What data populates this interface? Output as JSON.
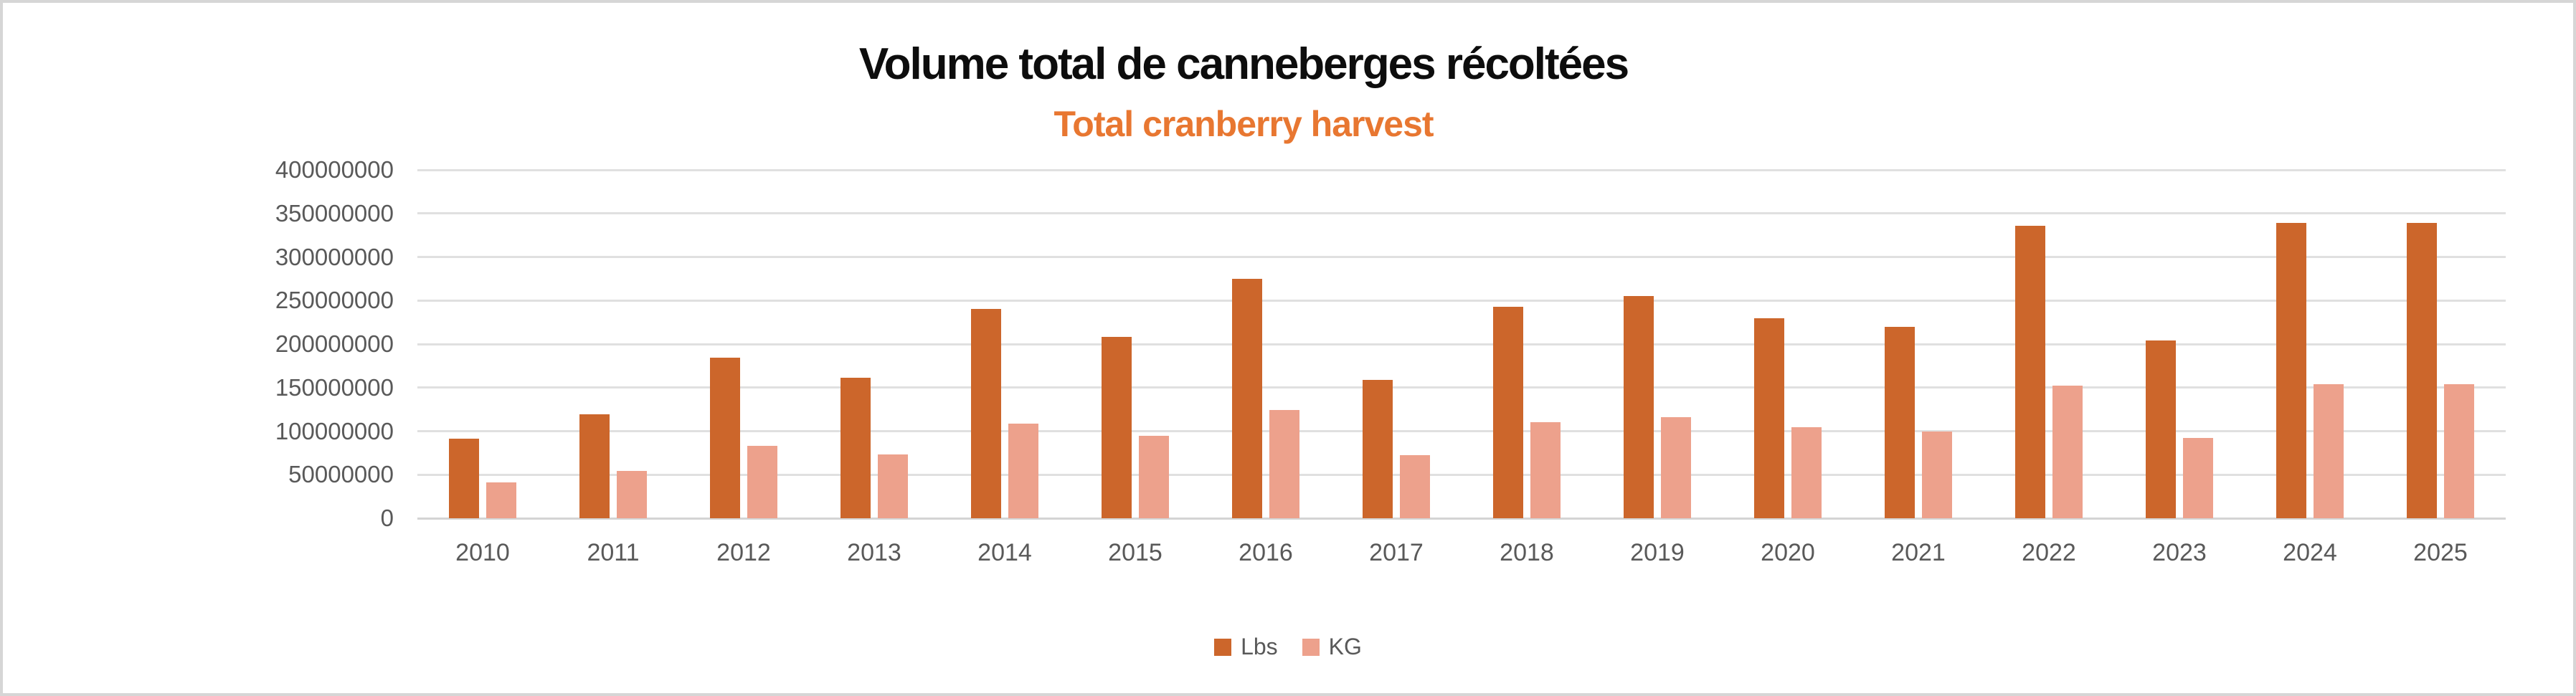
{
  "chart_data": {
    "type": "bar",
    "title": "Volume total de canneberges récoltées",
    "subtitle": "Total cranberry harvest",
    "xlabel": "",
    "ylabel": "",
    "categories": [
      "2010",
      "2011",
      "2012",
      "2013",
      "2014",
      "2015",
      "2016",
      "2017",
      "2018",
      "2019",
      "2020",
      "2021",
      "2022",
      "2023",
      "2024",
      "2025"
    ],
    "series": [
      {
        "name": "Lbs",
        "color": "#CC662B",
        "values": [
          91000000,
          119000000,
          184000000,
          161000000,
          240000000,
          208000000,
          275000000,
          159000000,
          243000000,
          255000000,
          230000000,
          220000000,
          336000000,
          204000000,
          339000000,
          339000000
        ]
      },
      {
        "name": "KG",
        "color": "#EDA18C",
        "values": [
          41300000,
          54000000,
          83500000,
          73000000,
          108900000,
          94300000,
          124700000,
          72100000,
          110200000,
          115700000,
          104300000,
          99800000,
          152400000,
          92500000,
          153800000,
          153800000
        ]
      }
    ],
    "ylim": [
      0,
      400000000
    ],
    "y_tick_step": 50000000,
    "y_tick_labels": [
      "400000000",
      "350000000",
      "300000000",
      "250000000",
      "200000000",
      "150000000",
      "100000000",
      "50000000",
      "0"
    ],
    "grid": true,
    "legend_position": "bottom-center"
  },
  "colors": {
    "title": "#0D0D0D",
    "subtitle": "#E87731",
    "axis_text": "#595959",
    "gridline": "#E0E0E0",
    "axis_line": "#D4D4D4",
    "background": "#FFFFFF",
    "canvas_border": "#D6D6D6",
    "bar_lbs": "#CC662B",
    "bar_kg": "#EDA18C"
  }
}
